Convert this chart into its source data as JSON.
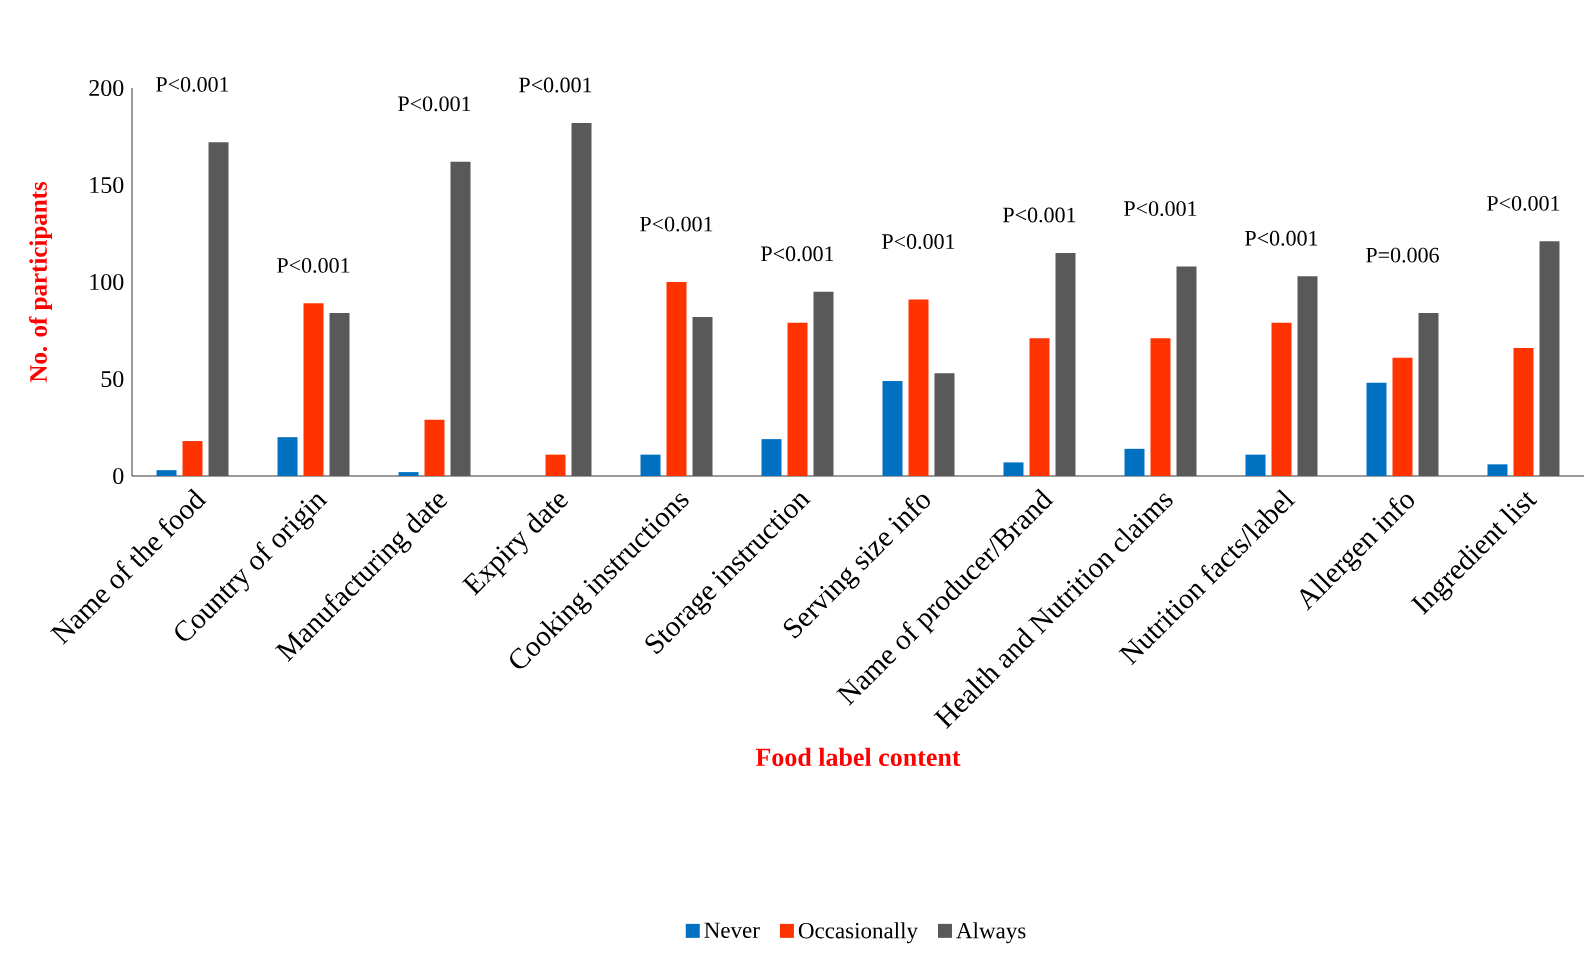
{
  "chart_data": {
    "type": "bar",
    "xlabel": "Food label content",
    "ylabel": "No. of participants",
    "categories": [
      "Name of the food",
      "Country of origin",
      "Manufacturing date",
      "Expiry date",
      "Cooking instructions",
      "Storage instruction",
      "Serving size info",
      "Name of producer/Brand",
      "Health and Nutrition claims",
      "Nutrition facts/label",
      "Allergen info",
      "Ingredient list"
    ],
    "series": [
      {
        "name": "Never",
        "color": "#0070c0",
        "values": [
          3,
          20,
          2,
          0,
          11,
          19,
          49,
          7,
          14,
          11,
          48,
          6
        ]
      },
      {
        "name": "Occasionally",
        "color": "#ff3300",
        "values": [
          18,
          89,
          29,
          11,
          100,
          79,
          91,
          71,
          71,
          79,
          61,
          66
        ]
      },
      {
        "name": "Always",
        "color": "#595959",
        "values": [
          172,
          84,
          162,
          182,
          82,
          95,
          53,
          115,
          108,
          103,
          84,
          121
        ]
      }
    ],
    "ylim": [
      0,
      200
    ],
    "yticks": [
      0,
      50,
      100,
      150,
      200
    ],
    "legend": "bottom",
    "annotations": [
      "P<0.001",
      "P<0.001",
      "P<0.001",
      "P<0.001",
      "P<0.001",
      "P<0.001",
      "P<0.001",
      "P<0.001",
      "P<0.001",
      "P<0.001",
      "P=0.006",
      "P<0.001"
    ]
  }
}
